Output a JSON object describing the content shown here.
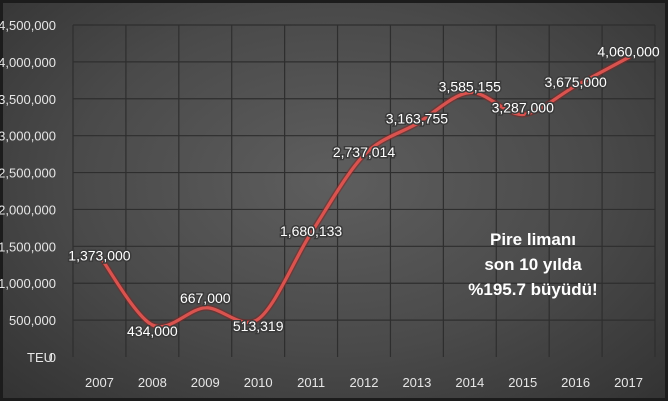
{
  "chart_data": {
    "type": "line",
    "x": [
      "2007",
      "2008",
      "2009",
      "2010",
      "2011",
      "2012",
      "2013",
      "2014",
      "2015",
      "2016",
      "2017"
    ],
    "series": [
      {
        "values": [
          1373000,
          434000,
          667000,
          513319,
          1680133,
          2737014,
          3163755,
          3585155,
          3287000,
          3675000,
          4060000
        ]
      }
    ],
    "data_labels": [
      "1,373,000",
      "434,000",
      "667,000",
      "513,319",
      "1,680,133",
      "2,737,014",
      "3,163,755",
      "3,585,155",
      "3,287,000",
      "3,675,000",
      "4,060,000"
    ],
    "yticks": [
      0,
      500000,
      1000000,
      1500000,
      2000000,
      2500000,
      3000000,
      3500000,
      4000000,
      4500000
    ],
    "ytick_labels": [
      "0",
      "500,000",
      "1,000,000",
      "1,500,000",
      "2,000,000",
      "2,500,000",
      "3,000,000",
      "3,500,000",
      "4,000,000",
      "4,500,000"
    ],
    "ylim": [
      0,
      4500000
    ],
    "unit_label": "TEU",
    "annotation": [
      "Pire limanı",
      "son 10 yılda",
      "%195.7 büyüdü!"
    ],
    "grid": true,
    "line_color": "#d9534f",
    "background_color": "#4a4a4a",
    "grid_color": "#2e2e2e"
  }
}
